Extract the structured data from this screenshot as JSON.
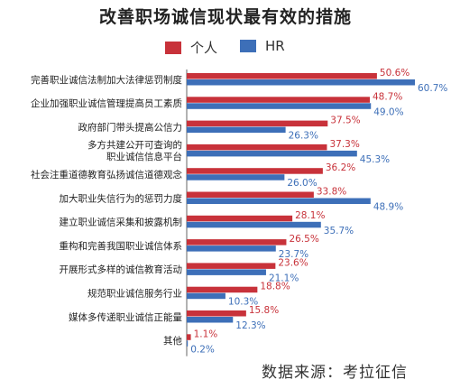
{
  "chart_data": {
    "type": "bar",
    "orientation": "horizontal",
    "title": "改善职场诚信现状最有效的措施",
    "legend_position": "top",
    "grid": false,
    "categories": [
      "完善职业诚信法制加大法律惩罚制度",
      "企业加强职业诚信管理提高员工素质",
      "政府部门带头提高公信力",
      "多方共建公开可查询的\n职业诚信信息平台",
      "社会注重道德教育弘扬诚信道德观念",
      "加大职业失信行为的惩罚力度",
      "建立职业诚信采集和披露机制",
      "重构和完善我国职业诚信体系",
      "开展形式多样的诚信教育活动",
      "规范职业诚信服务行业",
      "媒体多传递职业诚信正能量",
      "其他"
    ],
    "value_labels": {
      "个人": [
        "50.6%",
        "48.7%",
        "37.5%",
        "37.3%",
        "36.2%",
        "33.8%",
        "28.1%",
        "26.5%",
        "23.6%",
        "18.8%",
        "15.8%",
        "1.1%"
      ],
      "HR": [
        "60.7%",
        "49.0%",
        "26.3%",
        "45.3%",
        "26.0%",
        "48.9%",
        "35.7%",
        "23.7%",
        "21.1%",
        "10.3%",
        "12.3%",
        "0.2%"
      ]
    },
    "series": [
      {
        "name": "个人",
        "color": "#c8323a",
        "values": [
          50.6,
          48.7,
          37.5,
          37.3,
          36.2,
          33.8,
          28.1,
          26.5,
          23.6,
          18.8,
          15.8,
          1.1
        ]
      },
      {
        "name": "HR",
        "color": "#3d6fb8",
        "values": [
          60.7,
          49.0,
          26.3,
          45.3,
          26.0,
          48.9,
          35.7,
          23.7,
          21.1,
          10.3,
          12.3,
          0.2
        ]
      }
    ],
    "xlim": [
      0,
      60.7
    ]
  },
  "source_note": "数据来源：考拉征信",
  "colors": {
    "label_person": "#c8323a",
    "label_hr": "#3d6fb8",
    "axis": "#666666"
  }
}
